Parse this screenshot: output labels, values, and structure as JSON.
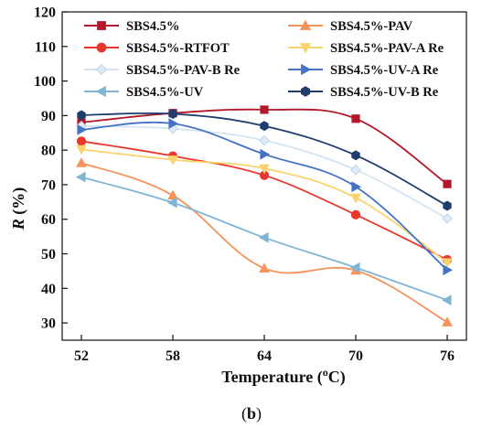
{
  "chart_data": {
    "type": "line",
    "xlabel_main": "Temperature (",
    "xlabel_sup": "o",
    "xlabel_tail": "C)",
    "ylabel_main": "R",
    "ylabel_tail": " (%)",
    "caption_open": "(",
    "caption_main": "b",
    "caption_close": ")",
    "x": [
      52,
      58,
      64,
      70,
      76
    ],
    "x_ticks": [
      "52",
      "58",
      "64",
      "70",
      "76"
    ],
    "ylim": [
      25,
      120
    ],
    "y_ticks": [
      30,
      40,
      50,
      60,
      70,
      80,
      90,
      100,
      110,
      120
    ],
    "grid": false,
    "legend_placement": "top",
    "series": [
      {
        "name": "SBS4.5%",
        "values": [
          88.0,
          90.7,
          91.7,
          89.1,
          70.2
        ],
        "color": "#b2182b",
        "marker": "square"
      },
      {
        "name": "SBS4.5%-PAV",
        "values": [
          76.3,
          66.9,
          45.8,
          45.2,
          30.2
        ],
        "color": "#f4935b",
        "marker": "triangle-up"
      },
      {
        "name": "SBS4.5%-RTFOT",
        "values": [
          82.6,
          78.3,
          72.7,
          61.3,
          48.3
        ],
        "color": "#e8382e",
        "marker": "circle"
      },
      {
        "name": "SBS4.5%-PAV-A Re",
        "values": [
          80.2,
          77.2,
          74.7,
          66.2,
          47.5
        ],
        "color": "#f9d46e",
        "marker": "triangle-down"
      },
      {
        "name": "SBS4.5%-PAV-B Re",
        "values": [
          87.0,
          86.2,
          82.8,
          74.3,
          60.2
        ],
        "color": "#deebf7",
        "marker": "diamond"
      },
      {
        "name": "SBS4.5%-UV-A Re",
        "values": [
          85.9,
          87.7,
          78.8,
          69.4,
          45.3
        ],
        "color": "#4472c4",
        "marker": "triangle-right"
      },
      {
        "name": "SBS4.5%-UV",
        "values": [
          72.2,
          64.8,
          54.7,
          46.0,
          36.6
        ],
        "color": "#7fb5d5",
        "marker": "triangle-left"
      },
      {
        "name": "SBS4.5%-UV-B Re",
        "values": [
          90.1,
          90.5,
          87.0,
          78.5,
          63.9
        ],
        "color": "#1f3c6e",
        "marker": "hexagon"
      }
    ]
  }
}
